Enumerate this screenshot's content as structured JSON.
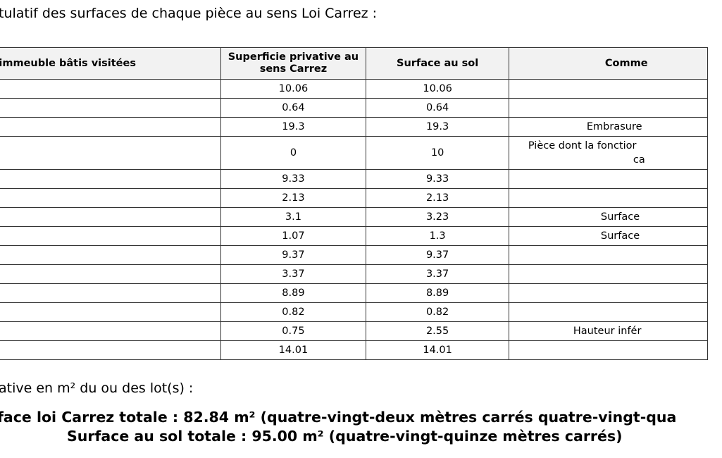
{
  "intro": "tulatif des surfaces de chaque pièce au sens Loi Carrez :",
  "table": {
    "headers": [
      "l'immeuble bâtis visitées",
      "Superficie privative au sens Carrez",
      "Surface au sol",
      "Comme"
    ],
    "rows": [
      {
        "carrez": "10.06",
        "sol": "10.06",
        "comment": ""
      },
      {
        "carrez": "0.64",
        "sol": "0.64",
        "comment": ""
      },
      {
        "carrez": "19.3",
        "sol": "19.3",
        "comment": "Embrasure"
      },
      {
        "carrez": "0",
        "sol": "10",
        "comment": "Pièce dont la fonctior",
        "comment2": "ca"
      },
      {
        "carrez": "9.33",
        "sol": "9.33",
        "comment": ""
      },
      {
        "carrez": "2.13",
        "sol": "2.13",
        "comment": ""
      },
      {
        "carrez": "3.1",
        "sol": "3.23",
        "comment": "Surface"
      },
      {
        "carrez": "1.07",
        "sol": "1.3",
        "comment": "Surface"
      },
      {
        "carrez": "9.37",
        "sol": "9.37",
        "comment": ""
      },
      {
        "carrez": "3.37",
        "sol": "3.37",
        "comment": ""
      },
      {
        "carrez": "8.89",
        "sol": "8.89",
        "comment": ""
      },
      {
        "carrez": "0.82",
        "sol": "0.82",
        "comment": ""
      },
      {
        "carrez": "0.75",
        "sol": "2.55",
        "comment": "Hauteur infér"
      },
      {
        "carrez": "14.01",
        "sol": "14.01",
        "comment": ""
      }
    ]
  },
  "subtitle": "ative en m² du ou des lot(s) :",
  "totals": {
    "carrez": "face loi Carrez totale : 82.84 m² (quatre-vingt-deux mètres carrés quatre-vingt-qua",
    "sol": "Surface au sol totale : 95.00 m² (quatre-vingt-quinze mètres carrés)"
  }
}
